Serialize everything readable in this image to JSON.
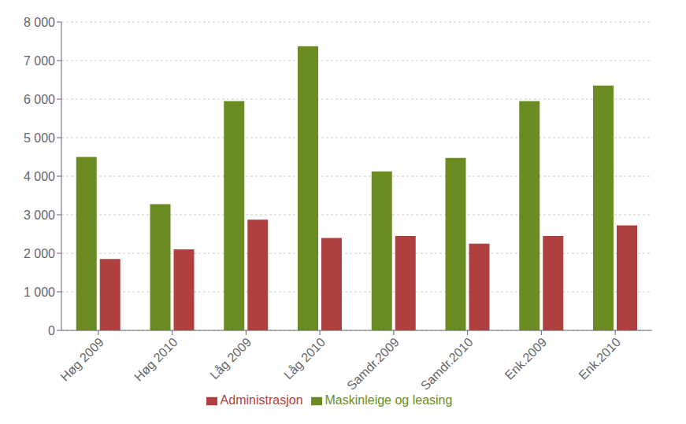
{
  "chart_data": {
    "type": "bar",
    "categories": [
      "Høg 2009",
      "Høg 2010",
      "Låg 2009",
      "Låg 2010",
      "Samdr.2009",
      "Samdr.2010",
      "Enk.2009",
      "Enk.2010"
    ],
    "series": [
      {
        "name": "Maskinleige og leasing",
        "color": "#6B8C23",
        "values": [
          4500,
          3275,
          5950,
          7375,
          4125,
          4475,
          5950,
          6350
        ]
      },
      {
        "name": "Administrasjon",
        "color": "#B04040",
        "values": [
          1850,
          2100,
          2875,
          2400,
          2450,
          2250,
          2450,
          2725
        ]
      }
    ],
    "ylim": [
      0,
      8000
    ],
    "yticks": [
      0,
      {
        "value": 1000,
        "label": "1 000"
      },
      {
        "value": 2000,
        "label": "2 000"
      },
      {
        "value": 3000,
        "label": "3 000"
      },
      {
        "value": 4000,
        "label": "4 000"
      },
      {
        "value": 5000,
        "label": "5 000"
      },
      {
        "value": 6000,
        "label": "6 000"
      },
      {
        "value": 7000,
        "label": "7 000"
      },
      {
        "value": 8000,
        "label": "8 000"
      }
    ],
    "grid": true,
    "legend": "bottom"
  }
}
